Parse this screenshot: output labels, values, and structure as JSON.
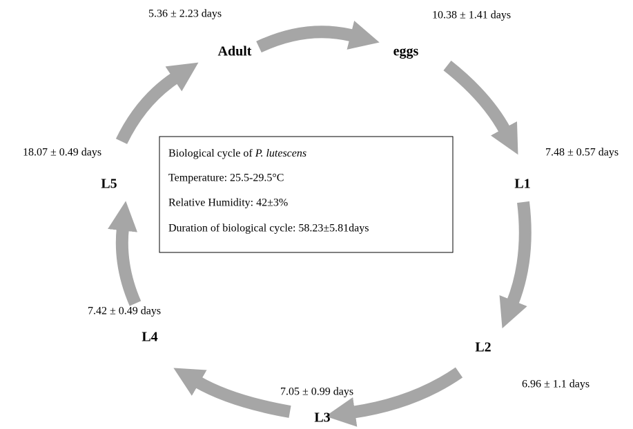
{
  "nodes": [
    {
      "label": "Adult",
      "duration": "5.36 ± 2.23 days"
    },
    {
      "label": "eggs",
      "duration": "10.38 ± 1.41 days"
    },
    {
      "label": "L1",
      "duration": "7.48 ± 0.57 days"
    },
    {
      "label": "L2",
      "duration": "6.96 ± 1.1 days"
    },
    {
      "label": "L3",
      "duration": "7.05 ± 0.99 days"
    },
    {
      "label": "L4",
      "duration": "7.42 ± 0.49 days"
    },
    {
      "label": "L5",
      "duration": "18.07 ± 0.49 days"
    }
  ],
  "info_box": {
    "title_prefix": "Biological cycle of",
    "title_species": "P. lutescens",
    "lines": [
      "Temperature: 25.5-29.5°C",
      "Relative Humidity: 42±3%",
      "Duration of biological cycle: 58.23±5.81days"
    ]
  }
}
